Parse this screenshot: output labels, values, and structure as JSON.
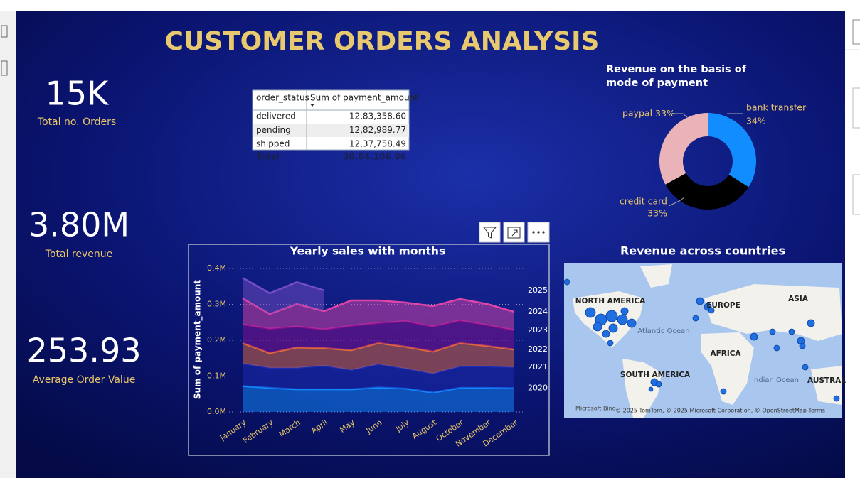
{
  "title": "CUSTOMER ORDERS ANALYSIS",
  "kpis": [
    {
      "value": "15K",
      "label": "Total no. Orders"
    },
    {
      "value": "3.80M",
      "label": "Total revenue"
    },
    {
      "value": "253.93",
      "label": "Average Order Value"
    }
  ],
  "table": {
    "headers": [
      "order_status",
      "Sum of payment_amount"
    ],
    "rows": [
      [
        "delivered",
        "12,83,358.60"
      ],
      [
        "pending",
        "12,82,989.77"
      ],
      [
        "shipped",
        "12,37,758.49"
      ]
    ],
    "total": [
      "Total",
      "38,04,106.86"
    ]
  },
  "map": {
    "title": "Revenue across countries",
    "labels": [
      "NORTH AMERICA",
      "EUROPE",
      "ASIA",
      "Atlantic Ocean",
      "AFRICA",
      "SOUTH AMERICA",
      "Indian Ocean",
      "AUSTRAL"
    ],
    "brand": "Microsoft Bing",
    "attribution": "© 2025 TomTom, © 2025 Microsoft Corporation, © OpenStreetMap  Terms"
  },
  "chart_data": [
    {
      "type": "pie",
      "title": "Revenue on the basis of mode of payment",
      "categories": [
        "bank transfer",
        "credit card",
        "paypal"
      ],
      "values": [
        34,
        33,
        33
      ],
      "value_labels": [
        "34%",
        "33%",
        "33%"
      ],
      "colors": [
        "#118dff",
        "#000000",
        "#e9b3b8"
      ]
    },
    {
      "type": "area",
      "title": "Yearly sales with months",
      "ylabel": "Sum of payment_amount",
      "categories": [
        "January",
        "February",
        "March",
        "April",
        "May",
        "June",
        "July",
        "August",
        "October",
        "November",
        "December"
      ],
      "ylim": [
        0,
        400000
      ],
      "yticks": [
        {
          "value": 0,
          "label": "0.0M"
        },
        {
          "value": 100000,
          "label": "0.1M"
        },
        {
          "value": 200000,
          "label": "0.2M"
        },
        {
          "value": 300000,
          "label": "0.3M"
        },
        {
          "value": 400000,
          "label": "0.4M"
        }
      ],
      "grid": true,
      "series": [
        {
          "name": "2020",
          "color": "#118dff",
          "values": [
            72000,
            67000,
            63000,
            63000,
            63000,
            68000,
            65000,
            54000,
            67000,
            67000,
            66000
          ]
        },
        {
          "name": "2021",
          "color": "#1c2cb4",
          "values": [
            63000,
            56000,
            60000,
            66000,
            54000,
            65000,
            56000,
            53000,
            60000,
            60000,
            59000
          ]
        },
        {
          "name": "2022",
          "color": "#e66c37",
          "values": [
            57000,
            41000,
            57000,
            49000,
            55000,
            59000,
            61000,
            61000,
            65000,
            57000,
            49000
          ]
        },
        {
          "name": "2023",
          "color": "#8a108f",
          "values": [
            52000,
            68000,
            58000,
            52000,
            68000,
            56000,
            71000,
            70000,
            63000,
            58000,
            54000
          ]
        },
        {
          "name": "2024",
          "color": "#e044a7",
          "values": [
            73000,
            41000,
            63000,
            51000,
            71000,
            63000,
            52000,
            57000,
            60000,
            59000,
            51000
          ]
        },
        {
          "name": "2025",
          "color": "#744ec2",
          "values": [
            57000,
            58000,
            61000,
            58000,
            null,
            null,
            null,
            null,
            null,
            null,
            null
          ]
        }
      ]
    }
  ]
}
